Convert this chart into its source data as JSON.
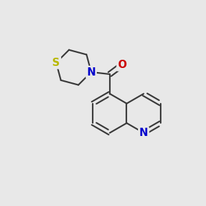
{
  "background_color": "#e8e8e8",
  "bond_color": "#3a3a3a",
  "bond_width": 1.6,
  "atom_S": {
    "label": "S",
    "color": "#b8b800",
    "fontsize": 11
  },
  "atom_N_thio": {
    "label": "N",
    "color": "#0000cc",
    "fontsize": 11
  },
  "atom_O": {
    "label": "O",
    "color": "#cc0000",
    "fontsize": 11
  },
  "atom_N_quin": {
    "label": "N",
    "color": "#0000cc",
    "fontsize": 11
  },
  "figsize": [
    3.0,
    3.0
  ],
  "dpi": 100
}
